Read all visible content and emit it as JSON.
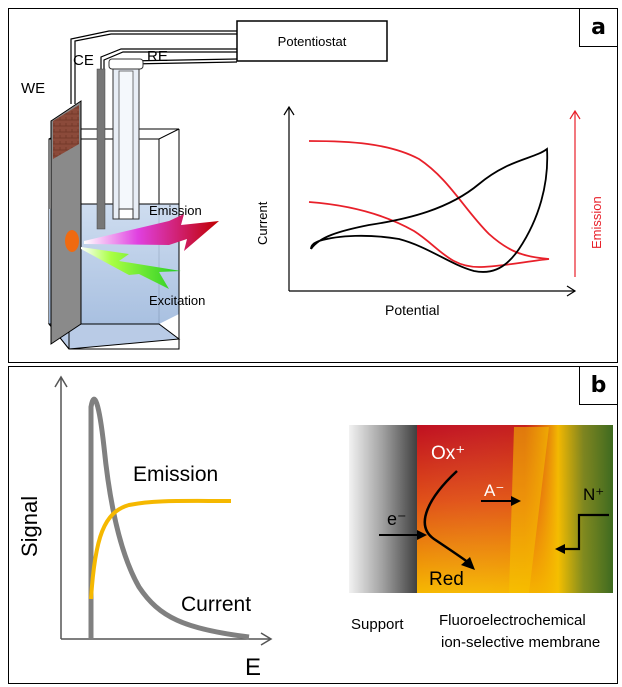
{
  "panel_a": {
    "label": "a",
    "electrodes": {
      "we": "WE",
      "ce": "CE",
      "re": "RE"
    },
    "potentiostat": "Potentiostat",
    "emission": "Emission",
    "excitation": "Excitation",
    "plot": {
      "xlabel": "Potential",
      "ylabel": "Current",
      "y2label": "Emission"
    },
    "colors": {
      "current": "#000000",
      "emission": "#e8202a"
    }
  },
  "panel_b": {
    "label": "b",
    "plot": {
      "xlabel": "E",
      "ylabel": "Signal",
      "emission_label": "Emission",
      "current_label": "Current"
    },
    "membrane": {
      "ox": "Ox⁺",
      "red": "Red",
      "anion": "A⁻",
      "electron": "e⁻",
      "cation": "N⁺",
      "support": "Support",
      "membrane_line1": "Fluoroelectrochemical",
      "membrane_line2": "ion-selective membrane"
    },
    "colors": {
      "current": "#808080",
      "emission": "#f5b800"
    }
  }
}
